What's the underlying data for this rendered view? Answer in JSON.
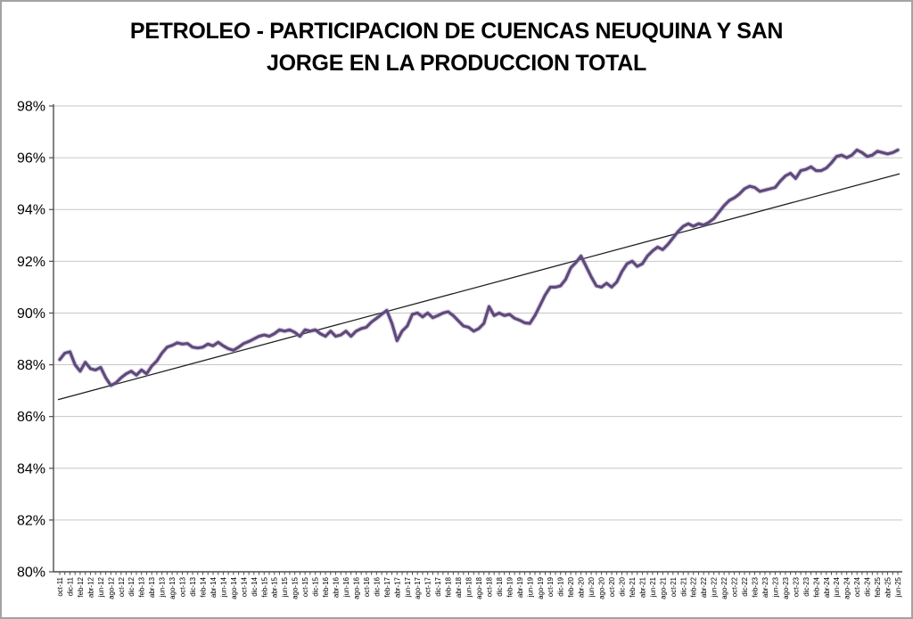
{
  "title": {
    "text": "PETROLEO - PARTICIPACION DE CUENCAS NEUQUINA Y SAN JORGE EN LA PRODUCCION TOTAL",
    "line1": "PETROLEO - PARTICIPACION DE CUENCAS NEUQUINA Y SAN",
    "line2": "JORGE EN LA PRODUCCION TOTAL"
  },
  "colors": {
    "background": "#ffffff",
    "chart_border": "#a3a3a3",
    "gridline": "#c6c6c6",
    "axis": "#4d4d4d",
    "series_purple": "#5f497a",
    "series_halo": "#9181b4",
    "trendline": "#1f1f1f",
    "text": "#000000"
  },
  "chart_data": {
    "type": "line",
    "title": "PETROLEO - PARTICIPACION DE CUENCAS NEUQUINA Y SAN JORGE EN LA PRODUCCION TOTAL",
    "ylim": [
      80,
      98
    ],
    "y_tick_step": 2,
    "y_tick_labels": [
      "80%",
      "82%",
      "84%",
      "86%",
      "88%",
      "90%",
      "92%",
      "94%",
      "96%",
      "98%"
    ],
    "grid": "horizontal",
    "legend_position": "none",
    "x_unit": "monthly, labeled every 2 months",
    "x_tick_labels": [
      "oct-11",
      "dic-11",
      "feb-12",
      "abr-12",
      "jun-12",
      "ago-12",
      "oct-12",
      "dic-12",
      "feb-13",
      "abr-13",
      "jun-13",
      "ago-13",
      "oct-13",
      "dic-13",
      "feb-14",
      "abr-14",
      "jun-14",
      "ago-14",
      "oct-14",
      "dic-14",
      "feb-15",
      "abr-15",
      "jun-15",
      "ago-15",
      "oct-15",
      "dic-15",
      "feb-16",
      "abr-16",
      "jun-16",
      "ago-16",
      "oct-16",
      "dic-16",
      "feb-17",
      "abr-17",
      "jun-17",
      "ago-17",
      "oct-17",
      "dic-17",
      "feb-18",
      "abr-18",
      "jun-18",
      "ago-18",
      "oct-18",
      "dic-18",
      "feb-19",
      "abr-19",
      "jun-19",
      "ago-19",
      "oct-19",
      "dic-19",
      "feb-20",
      "abr-20",
      "jun-20",
      "ago-20",
      "oct-20",
      "dic-20",
      "feb-21",
      "abr-21",
      "jun-21",
      "ago-21",
      "oct-21",
      "dic-21",
      "feb-22",
      "abr-22",
      "jun-22",
      "ago-22",
      "oct-22",
      "dic-22",
      "feb-23",
      "abr-23",
      "jun-23",
      "ago-23",
      "oct-23",
      "dic-23",
      "feb-24",
      "abr-24",
      "jun-24",
      "ago-24",
      "oct-24",
      "dic-24",
      "feb-25",
      "abr-25",
      "jun-25"
    ],
    "series": [
      {
        "name": "participacion-cuencas",
        "color": "#5f497a",
        "first_month": "oct-11",
        "last_month": "jun-25",
        "values": [
          88.2,
          88.45,
          88.5,
          88.0,
          87.75,
          88.1,
          87.85,
          87.8,
          87.9,
          87.5,
          87.2,
          87.3,
          87.5,
          87.65,
          87.75,
          87.6,
          87.8,
          87.65,
          87.95,
          88.15,
          88.45,
          88.68,
          88.75,
          88.85,
          88.8,
          88.82,
          88.68,
          88.65,
          88.68,
          88.8,
          88.73,
          88.87,
          88.73,
          88.62,
          88.56,
          88.68,
          88.82,
          88.9,
          89.0,
          89.1,
          89.15,
          89.1,
          89.2,
          89.35,
          89.3,
          89.35,
          89.25,
          89.1,
          89.35,
          89.3,
          89.35,
          89.2,
          89.1,
          89.3,
          89.1,
          89.15,
          89.3,
          89.1,
          89.3,
          89.4,
          89.45,
          89.65,
          89.8,
          89.95,
          90.1,
          89.6,
          88.93,
          89.3,
          89.5,
          89.95,
          90.0,
          89.85,
          90.0,
          89.82,
          89.9,
          90.0,
          90.05,
          89.9,
          89.7,
          89.5,
          89.45,
          89.3,
          89.4,
          89.6,
          90.25,
          89.9,
          90.0,
          89.9,
          89.95,
          89.8,
          89.72,
          89.62,
          89.6,
          89.9,
          90.3,
          90.7,
          91.0,
          91.0,
          91.05,
          91.3,
          91.75,
          91.95,
          92.2,
          91.8,
          91.4,
          91.05,
          91.0,
          91.15,
          91.0,
          91.2,
          91.6,
          91.9,
          92.0,
          91.8,
          91.9,
          92.2,
          92.4,
          92.55,
          92.45,
          92.65,
          92.9,
          93.15,
          93.35,
          93.45,
          93.35,
          93.45,
          93.4,
          93.5,
          93.65,
          93.9,
          94.15,
          94.35,
          94.45,
          94.6,
          94.8,
          94.9,
          94.85,
          94.7,
          94.75,
          94.8,
          94.85,
          95.1,
          95.3,
          95.4,
          95.2,
          95.5,
          95.55,
          95.65,
          95.5,
          95.5,
          95.6,
          95.8,
          96.05,
          96.1,
          96.0,
          96.1,
          96.3,
          96.2,
          96.05,
          96.1,
          96.25,
          96.2,
          96.15,
          96.2,
          96.3
        ]
      },
      {
        "name": "trendline-lineal",
        "color": "#1f1f1f",
        "type": "linear-trend",
        "start_value": 86.65,
        "end_value": 95.38
      }
    ]
  }
}
